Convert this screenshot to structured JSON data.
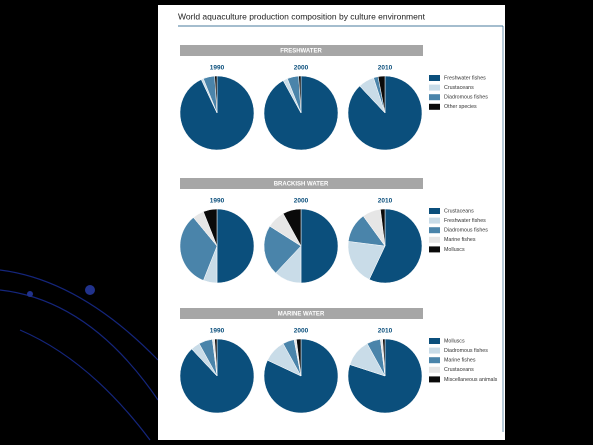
{
  "title": "World aquaculture production composition by culture environment",
  "chart_data": [
    {
      "type": "pie",
      "title": "FRESHWATER",
      "categories": [
        "Freshwater fishes",
        "Crustaceans",
        "Diadromous fishes",
        "Other species"
      ],
      "colors": [
        "#0b4f7c",
        "#c9dce8",
        "#4a84aa",
        "#0a0a0a"
      ],
      "series": [
        {
          "name": "1990",
          "values": [
            93,
            1,
            5,
            1
          ]
        },
        {
          "name": "2000",
          "values": [
            92,
            2,
            5,
            1
          ]
        },
        {
          "name": "2010",
          "values": [
            88,
            7,
            2,
            3
          ]
        }
      ]
    },
    {
      "type": "pie",
      "title": "BRACKISH WATER",
      "categories": [
        "Crustaceans",
        "Freshwater fishes",
        "Diadromous fishes",
        "Marine fishes",
        "Molluscs"
      ],
      "colors": [
        "#0b4f7c",
        "#c9dce8",
        "#4a84aa",
        "#e6e6e6",
        "#0a0a0a"
      ],
      "series": [
        {
          "name": "1990",
          "values": [
            50,
            6,
            33,
            5,
            6
          ]
        },
        {
          "name": "2000",
          "values": [
            50,
            12,
            22,
            8,
            8
          ]
        },
        {
          "name": "2010",
          "values": [
            57,
            20,
            13,
            8,
            2
          ]
        }
      ]
    },
    {
      "type": "pie",
      "title": "MARINE WATER",
      "categories": [
        "Molluscs",
        "Diadromous fishes",
        "Marine fishes",
        "Crustaceans",
        "Miscellaneous animals"
      ],
      "colors": [
        "#0b4f7c",
        "#c9dce8",
        "#4a84aa",
        "#e6e6e6",
        "#0a0a0a"
      ],
      "series": [
        {
          "name": "1990",
          "values": [
            88,
            4,
            6,
            1,
            1
          ]
        },
        {
          "name": "2000",
          "values": [
            82,
            10,
            5,
            1,
            2
          ]
        },
        {
          "name": "2010",
          "values": [
            80,
            12,
            6,
            1,
            1
          ]
        }
      ]
    }
  ]
}
